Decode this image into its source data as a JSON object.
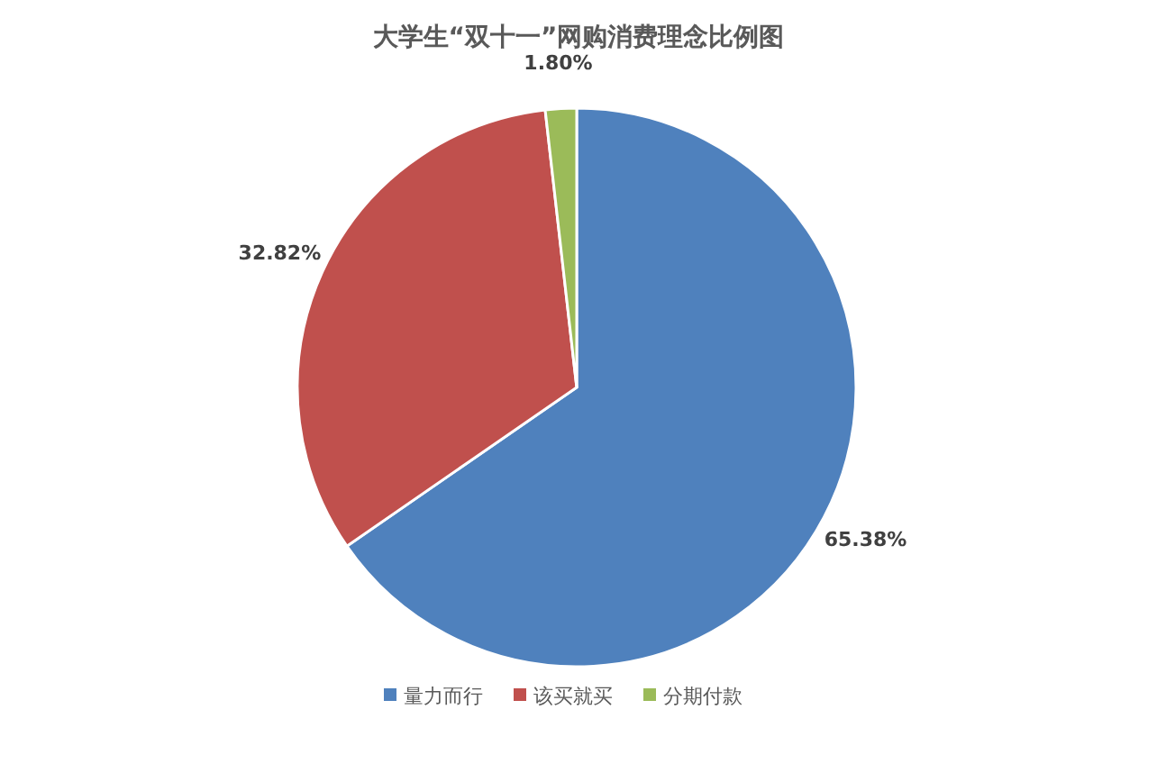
{
  "chart_data": {
    "type": "pie",
    "title": "大学生“双十一”网购消费理念比例图",
    "categories": [
      "量力而行",
      "该买就买",
      "分期付款"
    ],
    "values": [
      65.38,
      32.82,
      1.8
    ],
    "colors": [
      "#4f81bd",
      "#c0504d",
      "#9bbb59"
    ],
    "value_labels": [
      "65.38%",
      "32.82%",
      "1.80%"
    ],
    "legend": "bottom"
  }
}
